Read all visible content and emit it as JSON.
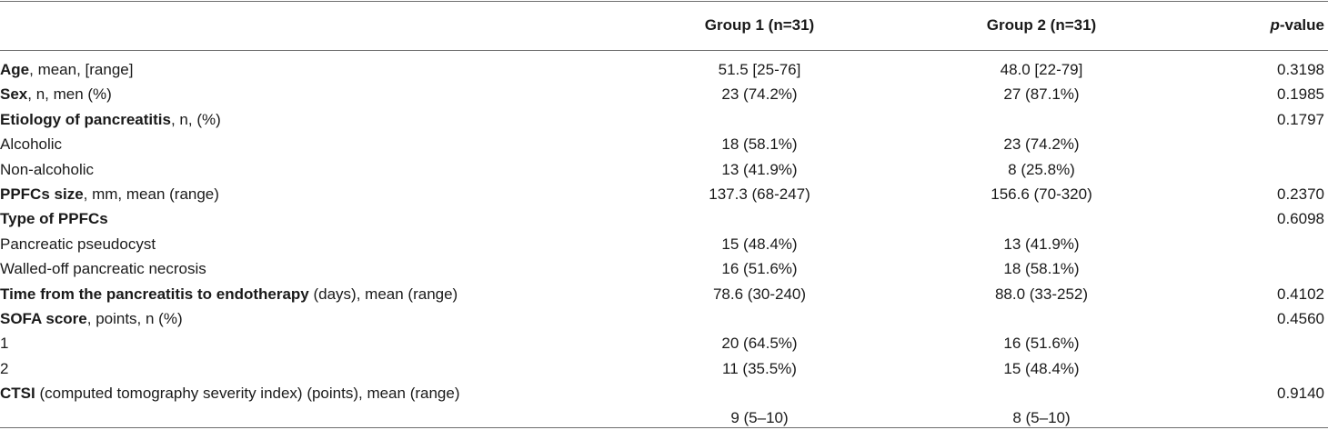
{
  "header": {
    "group1": "Group 1 (n=31)",
    "group2": "Group 2 (n=31)",
    "pvalue_italic": "p",
    "pvalue_rest": "-value"
  },
  "rows": [
    {
      "bold": "Age",
      "rest": ", mean, [range]",
      "g1": "51.5 [25-76]",
      "g2": "48.0 [22-79]",
      "p": "0.3198"
    },
    {
      "bold": "Sex",
      "rest": ", n, men (%)",
      "g1": "23 (74.2%)",
      "g2": "27 (87.1%)",
      "p": "0.1985"
    },
    {
      "bold": "Etiology of pancreatitis",
      "rest": ", n, (%)",
      "g1": "",
      "g2": "",
      "p": "0.1797"
    },
    {
      "bold": "",
      "rest": "Alcoholic",
      "g1": "18 (58.1%)",
      "g2": "23 (74.2%)",
      "p": ""
    },
    {
      "bold": "",
      "rest": "Non-alcoholic",
      "g1": "13 (41.9%)",
      "g2": "8 (25.8%)",
      "p": ""
    },
    {
      "bold": "PPFCs size",
      "rest": ", mm, mean (range)",
      "g1": "137.3 (68-247)",
      "g2": "156.6 (70-320)",
      "p": "0.2370"
    },
    {
      "bold": "Type of PPFCs",
      "rest": "",
      "g1": "",
      "g2": "",
      "p": "0.6098"
    },
    {
      "bold": "",
      "rest": "Pancreatic pseudocyst",
      "g1": "15 (48.4%)",
      "g2": "13 (41.9%)",
      "p": ""
    },
    {
      "bold": "",
      "rest": "Walled-off pancreatic necrosis",
      "g1": "16 (51.6%)",
      "g2": "18 (58.1%)",
      "p": ""
    },
    {
      "bold": "Time from the pancreatitis to endotherapy",
      "rest": " (days), mean (range)",
      "g1": "78.6 (30-240)",
      "g2": "88.0 (33-252)",
      "p": "0.4102"
    },
    {
      "bold": "SOFA score",
      "rest": ", points, n (%)",
      "g1": "",
      "g2": "",
      "p": "0.4560"
    },
    {
      "bold": "",
      "rest": "1",
      "g1": "20 (64.5%)",
      "g2": "16 (51.6%)",
      "p": ""
    },
    {
      "bold": "",
      "rest": "2",
      "g1": "11 (35.5%)",
      "g2": "15 (48.4%)",
      "p": ""
    },
    {
      "bold": "CTSI",
      "rest": " (computed tomography severity index) (points), mean (range)",
      "g1": "9 (5–10)",
      "g2": "8 (5–10)",
      "p": "0.9140"
    }
  ]
}
